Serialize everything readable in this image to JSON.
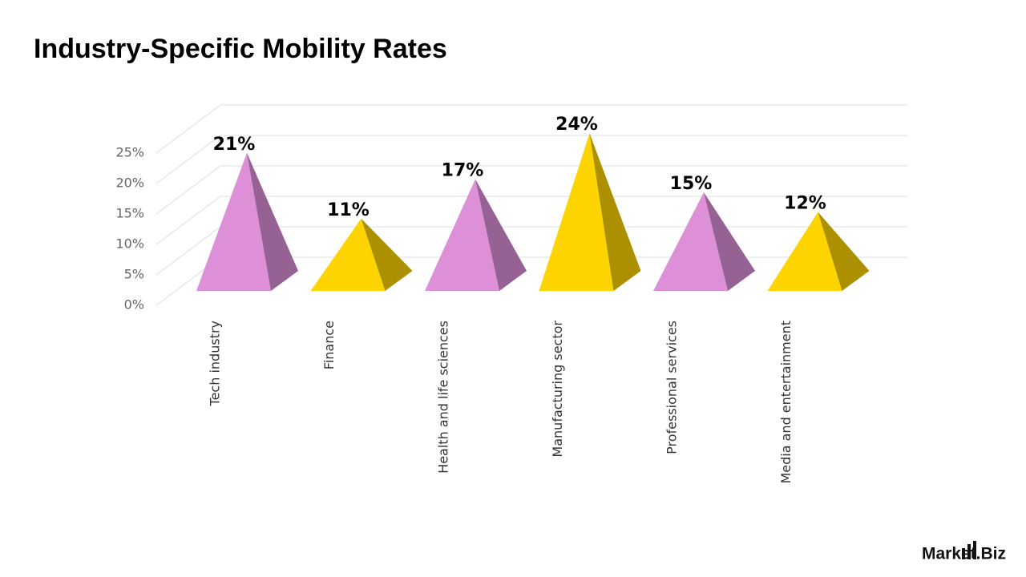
{
  "chart_data": {
    "type": "pyramid",
    "title": "Industry-Specific Mobility Rates",
    "categories": [
      "Tech industry",
      "Finance",
      "Health and life sciences",
      "Manufacturing sector",
      "Professional services",
      "Media and entertainment"
    ],
    "values": [
      21,
      11,
      17,
      24,
      15,
      12
    ],
    "value_labels": [
      "21%",
      "11%",
      "17%",
      "24%",
      "15%",
      "12%"
    ],
    "colors": [
      "#dd8fd8",
      "#fdd400",
      "#dd8fd8",
      "#fdd400",
      "#dd8fd8",
      "#fdd400"
    ],
    "ylim": [
      0,
      25
    ],
    "yticks": [
      {
        "value": 0,
        "label": "0%"
      },
      {
        "value": 5,
        "label": "5%"
      },
      {
        "value": 10,
        "label": "10%"
      },
      {
        "value": 15,
        "label": "15%"
      },
      {
        "value": 20,
        "label": "20%"
      },
      {
        "value": 25,
        "label": "25%"
      }
    ],
    "grid": true
  },
  "brand": "Market.Biz"
}
